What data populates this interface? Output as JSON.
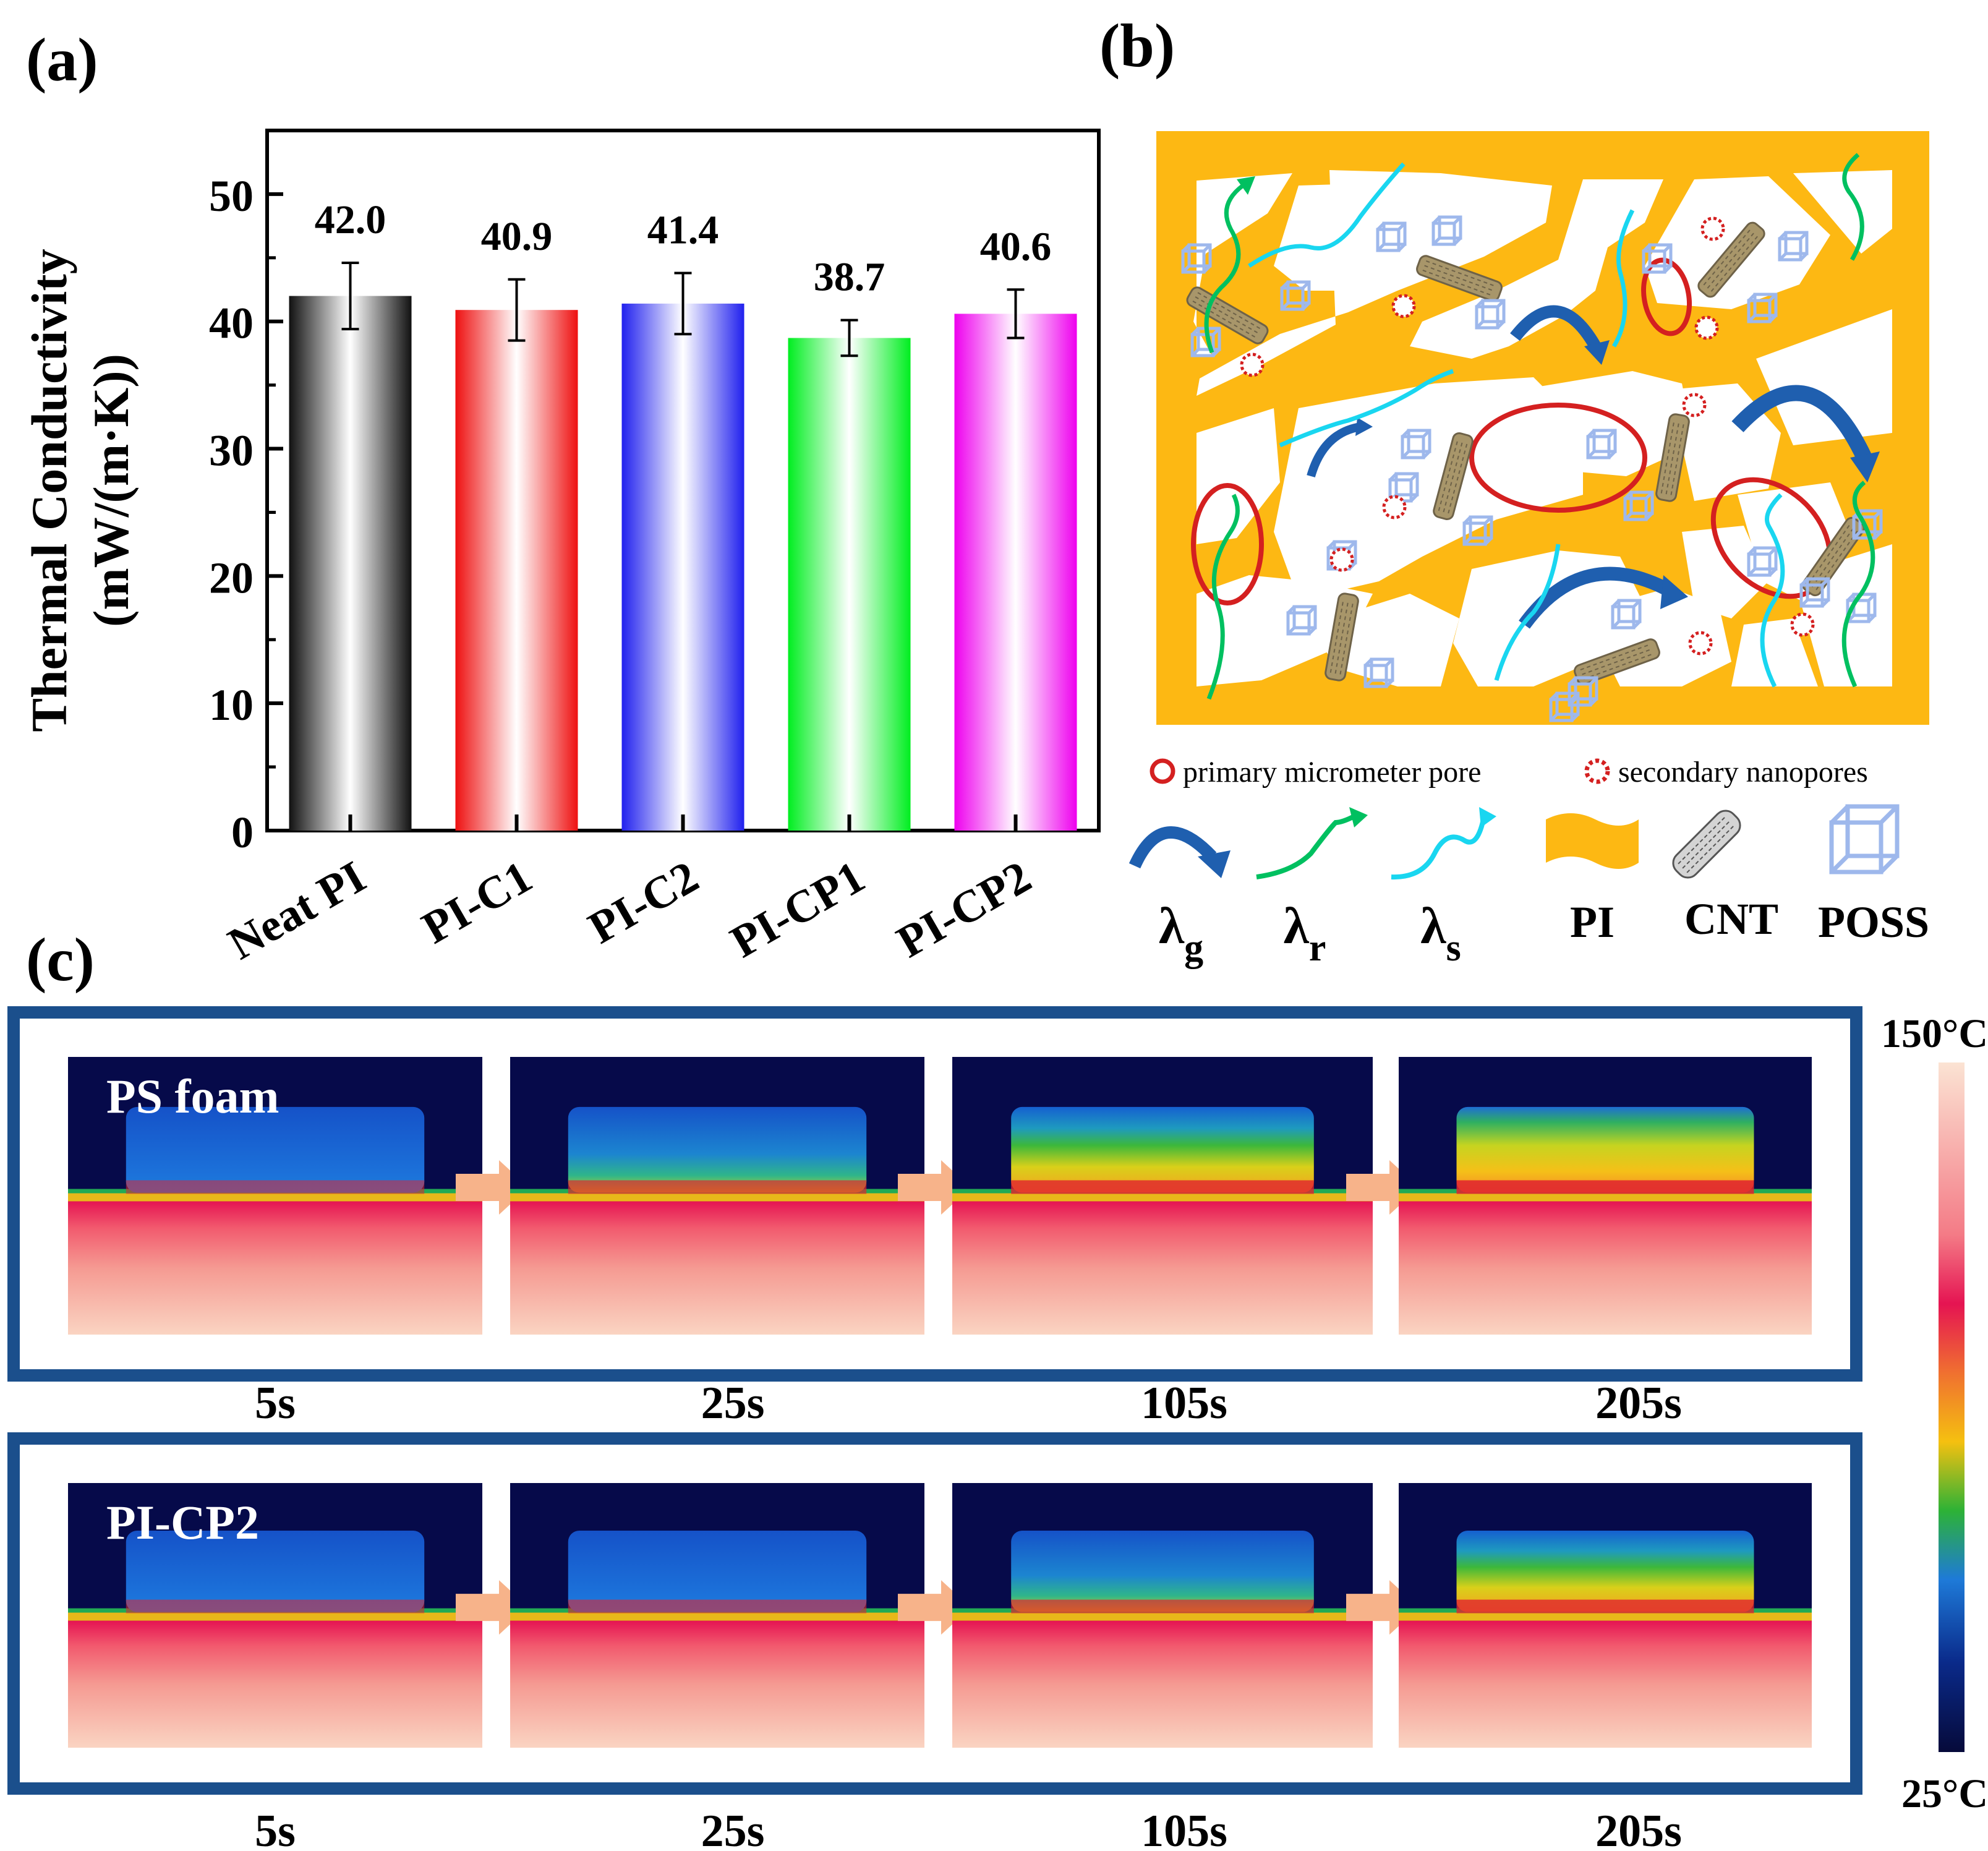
{
  "panels": {
    "a": "(a)",
    "b": "(b)",
    "c": "(c)"
  },
  "chart_data": {
    "type": "bar",
    "title": "",
    "xlabel": "",
    "ylabel_line1": "Thermal Conductivity",
    "ylabel_line2": "(mW/(m·K))",
    "ylim": [
      0,
      55
    ],
    "yticks": [
      0,
      10,
      20,
      30,
      40,
      50
    ],
    "grid": false,
    "categories": [
      "Neat PI",
      "PI-C1",
      "PI-C2",
      "PI-CP1",
      "PI-CP2"
    ],
    "values": [
      42.0,
      40.9,
      41.4,
      38.7,
      40.6
    ],
    "value_labels": [
      "42.0",
      "40.9",
      "41.4",
      "38.7",
      "40.6"
    ],
    "errors": [
      2.6,
      2.4,
      2.4,
      1.4,
      1.9
    ],
    "colors": [
      "#333333",
      "#ee2020",
      "#2a2aee",
      "#10ee30",
      "#ee10ee"
    ]
  },
  "schematic": {
    "legend_pores": {
      "primary": "primary micrometer pore",
      "secondary": "secondary nanopores"
    },
    "symbols": [
      {
        "base": "λ",
        "sub": "g"
      },
      {
        "base": "λ",
        "sub": "r"
      },
      {
        "base": "λ",
        "sub": "s"
      },
      {
        "base": "PI",
        "sub": ""
      },
      {
        "base": "CNT",
        "sub": ""
      },
      {
        "base": "POSS",
        "sub": ""
      }
    ],
    "colors": {
      "matrix": "#FDB813",
      "gas_arrow": "#1F5FAF",
      "radiation": "#00C060",
      "solid": "#19D6F0",
      "pore": "#D42020",
      "poss": "#9EB8EC",
      "cnt": "#8a7a5a"
    }
  },
  "thermal": {
    "rows": [
      {
        "label": "PS foam",
        "times": [
          "5s",
          "25s",
          "105s",
          "205s"
        ],
        "heat": [
          0,
          0.35,
          0.65,
          0.8
        ]
      },
      {
        "label": "PI-CP2",
        "times": [
          "5s",
          "25s",
          "105s",
          "205s"
        ],
        "heat": [
          0,
          0.1,
          0.35,
          0.62
        ]
      }
    ],
    "scale": {
      "max": "150°C",
      "min": "25°C"
    },
    "frame_color": "#1B4F8C",
    "arrow_color": "#F7B38A"
  }
}
